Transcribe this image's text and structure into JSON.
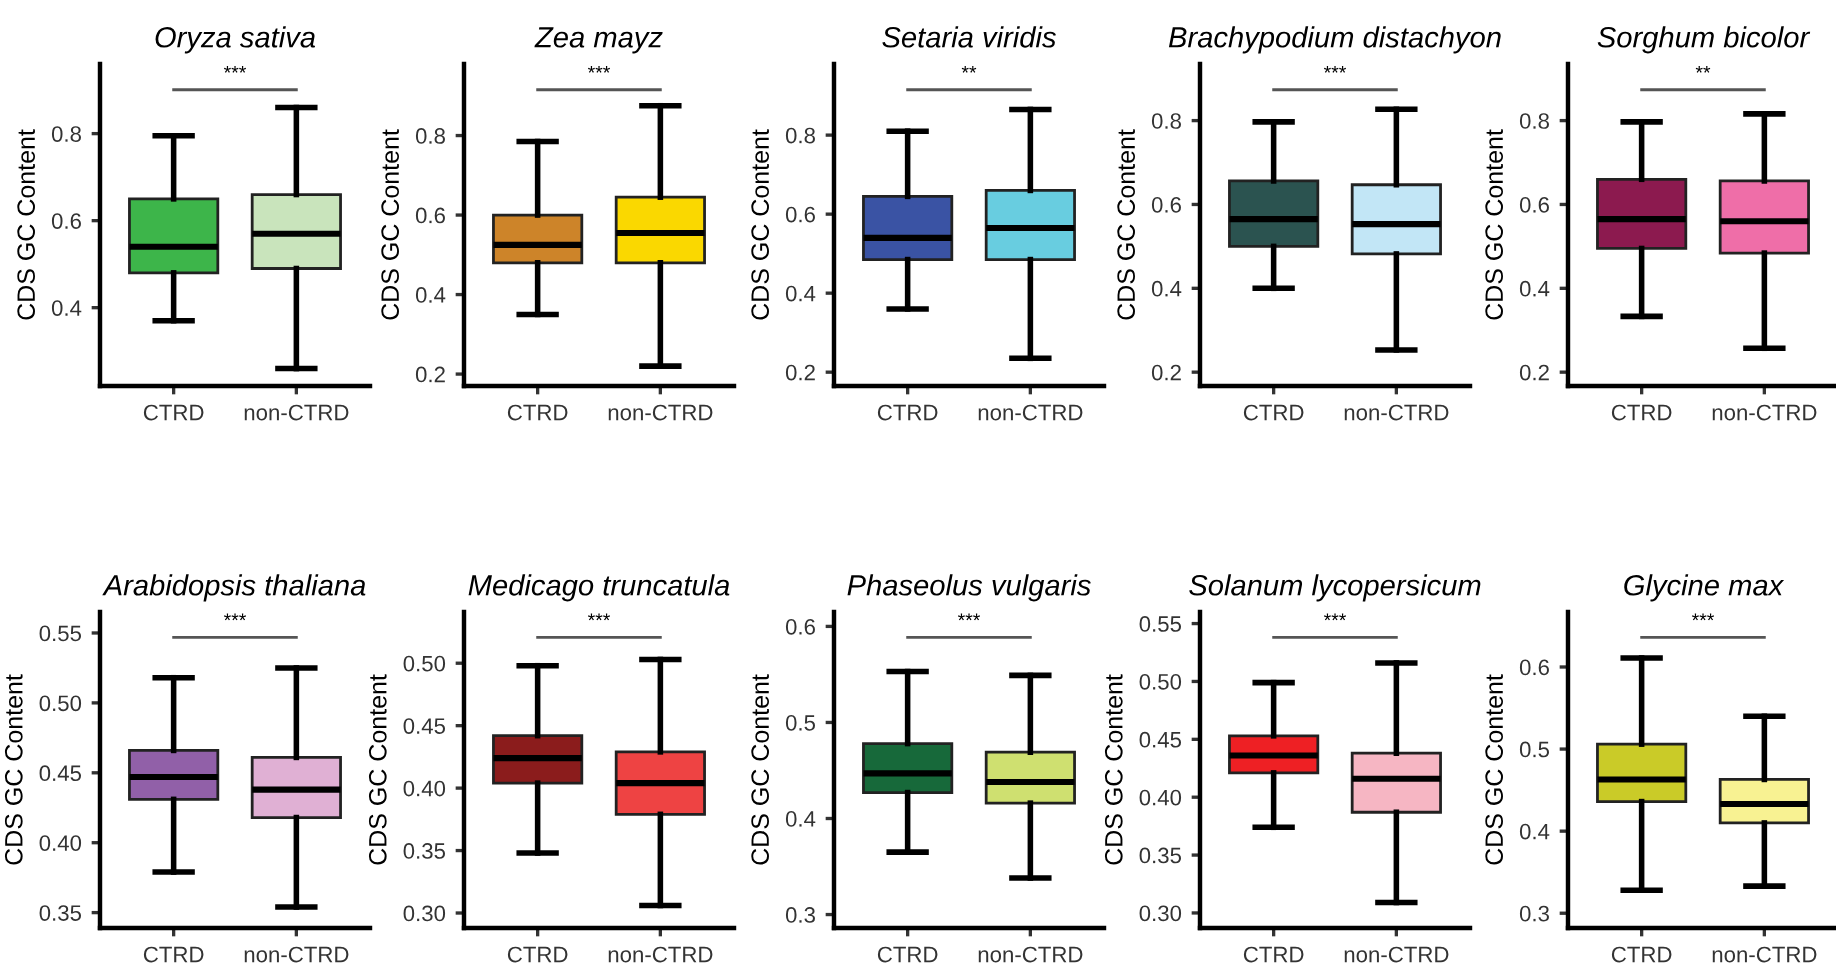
{
  "chart_data": [
    {
      "type": "box",
      "title": "Oryza sativa",
      "ylabel": "CDS GC Content",
      "categories": [
        "CTRD",
        "non-CTRD"
      ],
      "colors": [
        "#3db54a",
        "#c9e4bc"
      ],
      "boxes": [
        {
          "low": 0.37,
          "q1": 0.48,
          "median": 0.54,
          "q3": 0.65,
          "high": 0.795
        },
        {
          "low": 0.26,
          "q1": 0.49,
          "median": 0.57,
          "q3": 0.66,
          "high": 0.86
        }
      ],
      "ylim": [
        0.22,
        0.96
      ],
      "yticks": [
        0.4,
        0.6,
        0.8
      ],
      "annotations": [
        "***"
      ],
      "grid": false
    },
    {
      "type": "box",
      "title": "Zea mayz",
      "ylabel": "CDS GC Content",
      "categories": [
        "CTRD",
        "non-CTRD"
      ],
      "colors": [
        "#cd8429",
        "#fad800"
      ],
      "boxes": [
        {
          "low": 0.35,
          "q1": 0.48,
          "median": 0.525,
          "q3": 0.6,
          "high": 0.785
        },
        {
          "low": 0.22,
          "q1": 0.48,
          "median": 0.555,
          "q3": 0.645,
          "high": 0.875
        }
      ],
      "ylim": [
        0.17,
        0.98
      ],
      "yticks": [
        0.2,
        0.4,
        0.6,
        0.8
      ],
      "annotations": [
        "***"
      ],
      "grid": false
    },
    {
      "type": "box",
      "title": "Setaria viridis",
      "ylabel": "CDS GC Content",
      "categories": [
        "CTRD",
        "non-CTRD"
      ],
      "colors": [
        "#3a53a4",
        "#68cde0"
      ],
      "boxes": [
        {
          "low": 0.36,
          "q1": 0.485,
          "median": 0.54,
          "q3": 0.645,
          "high": 0.81
        },
        {
          "low": 0.235,
          "q1": 0.485,
          "median": 0.565,
          "q3": 0.66,
          "high": 0.865
        }
      ],
      "ylim": [
        0.165,
        0.98
      ],
      "yticks": [
        0.2,
        0.4,
        0.6,
        0.8
      ],
      "annotations": [
        "**"
      ],
      "grid": false
    },
    {
      "type": "box",
      "title": "Brachypodium distachyon",
      "ylabel": "CDS GC Content",
      "categories": [
        "CTRD",
        "non-CTRD"
      ],
      "colors": [
        "#2b5350",
        "#c2e6f6"
      ],
      "boxes": [
        {
          "low": 0.4,
          "q1": 0.5,
          "median": 0.565,
          "q3": 0.656,
          "high": 0.797
        },
        {
          "low": 0.253,
          "q1": 0.482,
          "median": 0.553,
          "q3": 0.647,
          "high": 0.827
        }
      ],
      "ylim": [
        0.167,
        0.935
      ],
      "yticks": [
        0.2,
        0.4,
        0.6,
        0.8
      ],
      "annotations": [
        "***"
      ],
      "grid": false
    },
    {
      "type": "box",
      "title": "Sorghum bicolor",
      "ylabel": "CDS GC Content",
      "categories": [
        "CTRD",
        "non-CTRD"
      ],
      "colors": [
        "#8c1a4f",
        "#ef6ea8"
      ],
      "boxes": [
        {
          "low": 0.333,
          "q1": 0.495,
          "median": 0.565,
          "q3": 0.66,
          "high": 0.797
        },
        {
          "low": 0.257,
          "q1": 0.484,
          "median": 0.56,
          "q3": 0.656,
          "high": 0.816
        }
      ],
      "ylim": [
        0.167,
        0.935
      ],
      "yticks": [
        0.2,
        0.4,
        0.6,
        0.8
      ],
      "annotations": [
        "**"
      ],
      "grid": false
    },
    {
      "type": "box",
      "title": "Arabidopsis thaliana",
      "ylabel": "CDS GC Content",
      "categories": [
        "CTRD",
        "non-CTRD"
      ],
      "colors": [
        "#9160a8",
        "#e0b0d4"
      ],
      "boxes": [
        {
          "low": 0.379,
          "q1": 0.431,
          "median": 0.447,
          "q3": 0.466,
          "high": 0.518
        },
        {
          "low": 0.354,
          "q1": 0.418,
          "median": 0.438,
          "q3": 0.461,
          "high": 0.525
        }
      ],
      "ylim": [
        0.339,
        0.565
      ],
      "yticks": [
        {
          "value": 0.35,
          "label": "0.35"
        },
        {
          "value": 0.4,
          "label": "0.40"
        },
        {
          "value": 0.45,
          "label": "0.45"
        },
        {
          "value": 0.5,
          "label": "0.50"
        },
        {
          "value": 0.55,
          "label": "0.55"
        }
      ],
      "annotations": [
        "***"
      ],
      "grid": false
    },
    {
      "type": "box",
      "title": "Medicago truncatula",
      "ylabel": "CDS GC Content",
      "categories": [
        "CTRD",
        "non-CTRD"
      ],
      "colors": [
        "#8b1c1c",
        "#ee4343"
      ],
      "boxes": [
        {
          "low": 0.348,
          "q1": 0.404,
          "median": 0.424,
          "q3": 0.442,
          "high": 0.498
        },
        {
          "low": 0.306,
          "q1": 0.379,
          "median": 0.404,
          "q3": 0.429,
          "high": 0.503
        }
      ],
      "ylim": [
        0.288,
        0.541
      ],
      "yticks": [
        {
          "value": 0.3,
          "label": "0.30"
        },
        {
          "value": 0.35,
          "label": "0.35"
        },
        {
          "value": 0.4,
          "label": "0.40"
        },
        {
          "value": 0.45,
          "label": "0.45"
        },
        {
          "value": 0.5,
          "label": "0.50"
        }
      ],
      "annotations": [
        "***"
      ],
      "grid": false
    },
    {
      "type": "box",
      "title": "Phaseolus vulgaris",
      "ylabel": "CDS GC Content",
      "categories": [
        "CTRD",
        "non-CTRD"
      ],
      "colors": [
        "#17693a",
        "#cfe070"
      ],
      "boxes": [
        {
          "low": 0.365,
          "q1": 0.427,
          "median": 0.447,
          "q3": 0.478,
          "high": 0.553
        },
        {
          "low": 0.338,
          "q1": 0.416,
          "median": 0.438,
          "q3": 0.469,
          "high": 0.549
        }
      ],
      "ylim": [
        0.286,
        0.615
      ],
      "yticks": [
        0.3,
        0.4,
        0.5,
        0.6
      ],
      "annotations": [
        "***"
      ],
      "grid": false
    },
    {
      "type": "box",
      "title": "Solanum lycopersicum",
      "ylabel": "CDS GC Content",
      "categories": [
        "CTRD",
        "non-CTRD"
      ],
      "colors": [
        "#ee2024",
        "#f6b6c3"
      ],
      "boxes": [
        {
          "low": 0.374,
          "q1": 0.421,
          "median": 0.436,
          "q3": 0.453,
          "high": 0.499
        },
        {
          "low": 0.309,
          "q1": 0.387,
          "median": 0.416,
          "q3": 0.438,
          "high": 0.516
        }
      ],
      "ylim": [
        0.287,
        0.56
      ],
      "yticks": [
        {
          "value": 0.3,
          "label": "0.30"
        },
        {
          "value": 0.35,
          "label": "0.35"
        },
        {
          "value": 0.4,
          "label": "0.40"
        },
        {
          "value": 0.45,
          "label": "0.45"
        },
        {
          "value": 0.5,
          "label": "0.50"
        },
        {
          "value": 0.55,
          "label": "0.55"
        }
      ],
      "annotations": [
        "***"
      ],
      "grid": false
    },
    {
      "type": "box",
      "title": "Glycine max",
      "ylabel": "CDS GC Content",
      "categories": [
        "CTRD",
        "non-CTRD"
      ],
      "colors": [
        "#cacb28",
        "#f8f292"
      ],
      "boxes": [
        {
          "low": 0.328,
          "q1": 0.436,
          "median": 0.463,
          "q3": 0.506,
          "high": 0.611
        },
        {
          "low": 0.333,
          "q1": 0.41,
          "median": 0.433,
          "q3": 0.463,
          "high": 0.54
        }
      ],
      "ylim": [
        0.282,
        0.667
      ],
      "yticks": [
        0.3,
        0.4,
        0.5,
        0.6
      ],
      "annotations": [
        "***"
      ],
      "grid": false
    }
  ]
}
